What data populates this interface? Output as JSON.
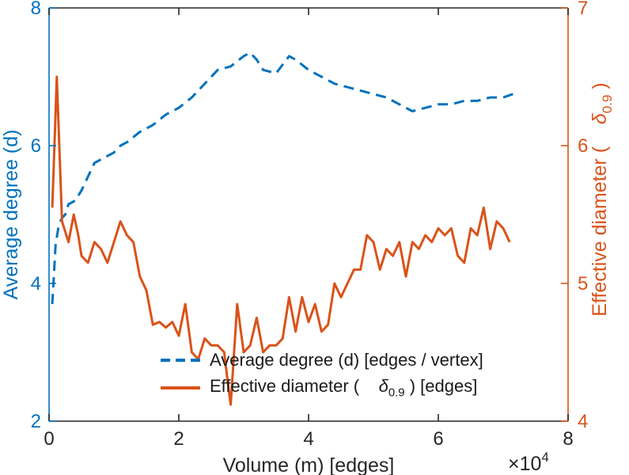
{
  "colors": {
    "blue": "#0072BD",
    "orange": "#D95319",
    "axis": "#262626"
  },
  "chart_data": {
    "type": "line",
    "title": "",
    "xlabel": "Volume (m) [edges]",
    "x_exp_base": "×10",
    "x_exp_power": "4",
    "xlim": [
      0,
      8
    ],
    "x_ticks": [
      0,
      2,
      4,
      6,
      8
    ],
    "grid": false,
    "legend_position": "bottom-center",
    "left_axis": {
      "label": "Average degree (d)",
      "lim": [
        2,
        8
      ],
      "ticks": [
        2,
        4,
        6,
        8
      ],
      "color": "#0072BD"
    },
    "right_axis": {
      "label_prefix": "Effective diameter (    ",
      "label_delta": "δ",
      "label_sub": "0.9",
      "label_suffix": " )",
      "lim": [
        4,
        7
      ],
      "ticks": [
        4,
        5,
        6,
        7
      ],
      "color": "#D95319"
    },
    "series": [
      {
        "id": "average-degree",
        "name": "Average degree (d) [edges / vertex]",
        "axis": "left",
        "style": "dashed",
        "color": "#0072BD",
        "x": [
          0.05,
          0.1,
          0.15,
          0.2,
          0.25,
          0.3,
          0.4,
          0.5,
          0.6,
          0.7,
          0.8,
          0.9,
          1.0,
          1.1,
          1.2,
          1.4,
          1.6,
          1.8,
          2.0,
          2.2,
          2.4,
          2.6,
          2.8,
          3.0,
          3.1,
          3.2,
          3.3,
          3.5,
          3.7,
          3.8,
          4.0,
          4.2,
          4.4,
          4.6,
          4.8,
          5.0,
          5.2,
          5.4,
          5.6,
          5.8,
          6.0,
          6.2,
          6.4,
          6.6,
          6.8,
          7.0,
          7.15
        ],
        "y": [
          3.7,
          4.55,
          4.85,
          4.95,
          5.0,
          5.15,
          5.2,
          5.35,
          5.55,
          5.75,
          5.8,
          5.85,
          5.9,
          6.0,
          6.05,
          6.2,
          6.3,
          6.45,
          6.55,
          6.7,
          6.9,
          7.1,
          7.15,
          7.3,
          7.35,
          7.25,
          7.1,
          7.05,
          7.3,
          7.25,
          7.1,
          7.0,
          6.9,
          6.85,
          6.8,
          6.75,
          6.7,
          6.6,
          6.5,
          6.55,
          6.6,
          6.6,
          6.65,
          6.65,
          6.7,
          6.7,
          6.75
        ]
      },
      {
        "id": "effective-diameter",
        "name": "Effective diameter ( δ0.9 ) [edges]",
        "axis": "right",
        "style": "solid",
        "color": "#D95319",
        "x": [
          0.05,
          0.12,
          0.2,
          0.3,
          0.38,
          0.45,
          0.5,
          0.6,
          0.7,
          0.8,
          0.9,
          1.0,
          1.1,
          1.2,
          1.3,
          1.4,
          1.5,
          1.6,
          1.7,
          1.8,
          1.9,
          2.0,
          2.1,
          2.2,
          2.3,
          2.4,
          2.5,
          2.6,
          2.7,
          2.75,
          2.8,
          2.9,
          3.0,
          3.1,
          3.2,
          3.3,
          3.4,
          3.5,
          3.6,
          3.7,
          3.8,
          3.9,
          4.0,
          4.1,
          4.2,
          4.3,
          4.4,
          4.5,
          4.6,
          4.7,
          4.8,
          4.9,
          5.0,
          5.1,
          5.2,
          5.3,
          5.4,
          5.5,
          5.6,
          5.7,
          5.8,
          5.9,
          6.0,
          6.1,
          6.2,
          6.3,
          6.4,
          6.5,
          6.6,
          6.7,
          6.8,
          6.9,
          7.0,
          7.1
        ],
        "y": [
          5.55,
          6.5,
          5.45,
          5.3,
          5.5,
          5.35,
          5.2,
          5.15,
          5.3,
          5.25,
          5.15,
          5.3,
          5.45,
          5.35,
          5.3,
          5.05,
          4.95,
          4.7,
          4.72,
          4.68,
          4.72,
          4.62,
          4.85,
          4.5,
          4.45,
          4.6,
          4.55,
          4.55,
          4.5,
          4.3,
          4.12,
          4.85,
          4.5,
          4.55,
          4.75,
          4.5,
          4.55,
          4.55,
          4.6,
          4.9,
          4.65,
          4.9,
          4.72,
          4.85,
          4.65,
          4.7,
          5.0,
          4.9,
          5.0,
          5.1,
          5.1,
          5.35,
          5.3,
          5.1,
          5.25,
          5.2,
          5.3,
          5.05,
          5.3,
          5.25,
          5.35,
          5.3,
          5.4,
          5.35,
          5.4,
          5.2,
          5.15,
          5.4,
          5.35,
          5.55,
          5.25,
          5.45,
          5.4,
          5.3
        ]
      }
    ]
  },
  "legend": {
    "item1": "Average degree (d) [edges / vertex]",
    "item2_prefix": "Effective diameter (    ",
    "item2_delta": "δ",
    "item2_sub": "0.9",
    "item2_suffix": " ) [edges]"
  }
}
